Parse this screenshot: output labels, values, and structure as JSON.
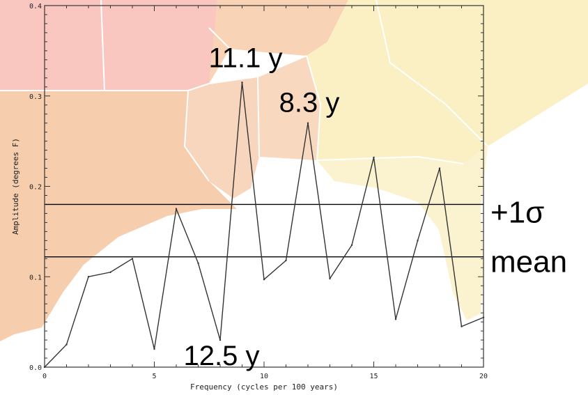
{
  "chart_data": {
    "type": "line",
    "title": "",
    "xlabel": "Frequency (cycles per 100 years)",
    "ylabel": "Amplitude (degrees F)",
    "xlim": [
      0,
      20
    ],
    "ylim": [
      0.0,
      0.4
    ],
    "x_ticks": [
      "0",
      "5",
      "10",
      "15",
      "20"
    ],
    "y_ticks": [
      "0.0",
      "0.1",
      "0.2",
      "0.3",
      "0.4"
    ],
    "grid": false,
    "legend": "none",
    "series": [
      {
        "x": [
          0,
          1,
          2,
          3,
          4,
          5,
          6,
          7,
          8,
          9,
          10,
          11,
          12,
          13,
          14,
          15,
          16,
          17,
          18,
          19,
          20
        ],
        "values": [
          0.0,
          0.025,
          0.1,
          0.105,
          0.12,
          0.02,
          0.175,
          0.115,
          0.03,
          0.315,
          0.097,
          0.118,
          0.27,
          0.098,
          0.135,
          0.232,
          0.053,
          0.14,
          0.22,
          0.045,
          0.055
        ],
        "color": "#333333"
      }
    ],
    "reference_lines": [
      {
        "label": "+1σ",
        "y": 0.18
      },
      {
        "label": "mean",
        "y": 0.122
      }
    ],
    "annotations": [
      {
        "text": "11.1 y",
        "x": 9,
        "y": 0.315
      },
      {
        "text": "8.3 y",
        "x": 12,
        "y": 0.27
      },
      {
        "text": "12.5 y",
        "x": 8,
        "y": 0.03
      }
    ]
  },
  "background": {
    "colors": {
      "ocean": "#ffffff",
      "pink": "#f9c7c0",
      "peach": "#f9d3b5",
      "orange": "#f6ceae",
      "yellow": "#fbefc4",
      "pale_yellow": "#fbf3cf",
      "border": "#ffffff"
    }
  }
}
